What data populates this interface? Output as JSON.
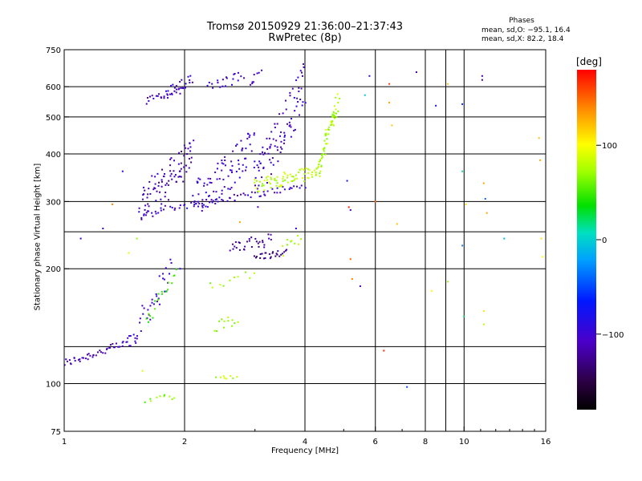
{
  "header": {
    "title": "Tromsø 20150929 21:36:00–21:37:43",
    "subtitle": "RwPretec (8p)",
    "phases_title": "Phases",
    "phases_o": "mean, sd,O: −95.1, 16.4",
    "phases_x": "mean, sd,X: 82.2, 18.4"
  },
  "colorbar": {
    "unit": "[deg]",
    "ticks": [
      {
        "value": 100,
        "label": "100"
      },
      {
        "value": 0,
        "label": "0"
      },
      {
        "value": -100,
        "label": "−100"
      }
    ],
    "range": [
      -180,
      180
    ]
  },
  "chart_data": {
    "type": "scatter",
    "title": "Tromsø 20150929 21:36:00–21:37:43",
    "subtitle": "RwPretec (8p)",
    "xlabel": "Frequency [MHz]",
    "ylabel": "Stationary phase Virtual Height [km]",
    "x_scale": "log",
    "y_scale": "log",
    "xlim": [
      1,
      16
    ],
    "ylim": [
      75,
      750
    ],
    "x_ticks": [
      {
        "value": 1,
        "label": "1"
      },
      {
        "value": 2,
        "label": "2"
      },
      {
        "value": 4,
        "label": "4"
      },
      {
        "value": 6,
        "label": "6"
      },
      {
        "value": 8,
        "label": "8"
      },
      {
        "value": 10,
        "label": "10"
      },
      {
        "value": 16,
        "label": "16"
      }
    ],
    "y_ticks": [
      {
        "value": 75,
        "label": "75"
      },
      {
        "value": 100,
        "label": "100"
      },
      {
        "value": 200,
        "label": "200"
      },
      {
        "value": 300,
        "label": "300"
      },
      {
        "value": 400,
        "label": "400"
      },
      {
        "value": 500,
        "label": "500"
      },
      {
        "value": 600,
        "label": "600"
      },
      {
        "value": 750,
        "label": "750"
      }
    ],
    "x_grid": [
      2,
      4,
      6,
      8,
      9,
      10
    ],
    "y_grid": [
      100,
      125,
      200,
      250,
      300,
      400,
      500,
      600
    ],
    "grid": true,
    "color_variable": "phase [deg]",
    "traces": [
      {
        "x0": 1.0,
        "x1": 1.45,
        "y0": 113,
        "y1": 128,
        "phase": -110,
        "n": 45,
        "jitter_y": 0.025
      },
      {
        "x0": 1.45,
        "x1": 1.85,
        "y0": 128,
        "y1": 200,
        "phase": -105,
        "n": 40,
        "jitter_y": 0.08
      },
      {
        "x0": 1.6,
        "x1": 1.9,
        "y0": 145,
        "y1": 195,
        "phase": 50,
        "n": 18,
        "jitter_y": 0.05
      },
      {
        "x0": 1.6,
        "x1": 1.9,
        "y0": 91,
        "y1": 93,
        "phase": 60,
        "n": 10,
        "jitter_y": 0.02
      },
      {
        "x0": 2.4,
        "x1": 2.7,
        "y0": 104,
        "y1": 104,
        "phase": 80,
        "n": 8,
        "jitter_y": 0.01
      },
      {
        "x0": 2.4,
        "x1": 2.7,
        "y0": 140,
        "y1": 150,
        "phase": 75,
        "n": 12,
        "jitter_y": 0.04
      },
      {
        "x0": 2.3,
        "x1": 3.0,
        "y0": 180,
        "y1": 195,
        "phase": 70,
        "n": 10,
        "jitter_y": 0.03
      },
      {
        "x0": 2.6,
        "x1": 3.3,
        "y0": 225,
        "y1": 240,
        "phase": -120,
        "n": 30,
        "jitter_y": 0.04
      },
      {
        "x0": 3.0,
        "x1": 3.6,
        "y0": 215,
        "y1": 220,
        "phase": -130,
        "n": 25,
        "jitter_y": 0.02
      },
      {
        "x0": 3.5,
        "x1": 3.9,
        "y0": 225,
        "y1": 240,
        "phase": 70,
        "n": 10,
        "jitter_y": 0.04
      },
      {
        "x0": 1.55,
        "x1": 4.0,
        "y0": 280,
        "y1": 330,
        "phase": -100,
        "n": 70,
        "jitter_y": 0.02
      },
      {
        "x0": 1.55,
        "x1": 2.1,
        "y0": 290,
        "y1": 400,
        "phase": -110,
        "n": 90,
        "jitter_y": 0.12
      },
      {
        "x0": 2.1,
        "x1": 3.0,
        "y0": 300,
        "y1": 420,
        "phase": -100,
        "n": 90,
        "jitter_y": 0.12
      },
      {
        "x0": 3.0,
        "x1": 4.0,
        "y0": 330,
        "y1": 620,
        "phase": -105,
        "n": 90,
        "jitter_y": 0.15
      },
      {
        "x0": 3.0,
        "x1": 4.3,
        "y0": 330,
        "y1": 360,
        "phase": 80,
        "n": 70,
        "jitter_y": 0.04
      },
      {
        "x0": 4.3,
        "x1": 4.85,
        "y0": 360,
        "y1": 560,
        "phase": 75,
        "n": 60,
        "jitter_y": 0.06
      },
      {
        "x0": 1.6,
        "x1": 2.0,
        "y0": 550,
        "y1": 590,
        "phase": -110,
        "n": 25,
        "jitter_y": 0.02
      },
      {
        "x0": 1.8,
        "x1": 2.1,
        "y0": 580,
        "y1": 630,
        "phase": -100,
        "n": 20,
        "jitter_y": 0.03
      },
      {
        "x0": 2.3,
        "x1": 2.8,
        "y0": 600,
        "y1": 640,
        "phase": -105,
        "n": 20,
        "jitter_y": 0.03
      },
      {
        "x0": 2.9,
        "x1": 3.1,
        "y0": 610,
        "y1": 655,
        "phase": -100,
        "n": 8,
        "jitter_y": 0.02
      }
    ],
    "points": [
      {
        "x": 1.1,
        "y": 240,
        "phase": -100
      },
      {
        "x": 1.25,
        "y": 255,
        "phase": -90
      },
      {
        "x": 1.4,
        "y": 360,
        "phase": -95
      },
      {
        "x": 1.45,
        "y": 220,
        "phase": 90
      },
      {
        "x": 1.32,
        "y": 295,
        "phase": 140
      },
      {
        "x": 1.52,
        "y": 240,
        "phase": 70
      },
      {
        "x": 1.57,
        "y": 108,
        "phase": 90
      },
      {
        "x": 1.95,
        "y": 200,
        "phase": -100
      },
      {
        "x": 2.75,
        "y": 265,
        "phase": 130
      },
      {
        "x": 3.8,
        "y": 255,
        "phase": -90
      },
      {
        "x": 5.1,
        "y": 340,
        "phase": -80
      },
      {
        "x": 5.15,
        "y": 290,
        "phase": 170
      },
      {
        "x": 5.2,
        "y": 285,
        "phase": -100
      },
      {
        "x": 5.2,
        "y": 212,
        "phase": 150
      },
      {
        "x": 5.25,
        "y": 188,
        "phase": 140
      },
      {
        "x": 5.5,
        "y": 180,
        "phase": -110
      },
      {
        "x": 5.65,
        "y": 570,
        "phase": -5
      },
      {
        "x": 5.8,
        "y": 640,
        "phase": -90
      },
      {
        "x": 6.0,
        "y": 300,
        "phase": 150
      },
      {
        "x": 6.3,
        "y": 122,
        "phase": 170
      },
      {
        "x": 6.5,
        "y": 610,
        "phase": 160
      },
      {
        "x": 6.5,
        "y": 545,
        "phase": 130
      },
      {
        "x": 6.6,
        "y": 475,
        "phase": 120
      },
      {
        "x": 6.8,
        "y": 262,
        "phase": 120
      },
      {
        "x": 7.2,
        "y": 98,
        "phase": -50
      },
      {
        "x": 7.6,
        "y": 655,
        "phase": -120
      },
      {
        "x": 8.3,
        "y": 175,
        "phase": 100
      },
      {
        "x": 8.5,
        "y": 535,
        "phase": -80
      },
      {
        "x": 9.1,
        "y": 610,
        "phase": 120
      },
      {
        "x": 9.1,
        "y": 185,
        "phase": 70
      },
      {
        "x": 9.9,
        "y": 540,
        "phase": -60
      },
      {
        "x": 9.9,
        "y": 360,
        "phase": 10
      },
      {
        "x": 9.9,
        "y": 230,
        "phase": -30
      },
      {
        "x": 10.0,
        "y": 150,
        "phase": 20
      },
      {
        "x": 10.1,
        "y": 295,
        "phase": 110
      },
      {
        "x": 11.1,
        "y": 640,
        "phase": -120
      },
      {
        "x": 11.1,
        "y": 625,
        "phase": -130
      },
      {
        "x": 11.2,
        "y": 335,
        "phase": 130
      },
      {
        "x": 11.3,
        "y": 305,
        "phase": -40
      },
      {
        "x": 11.4,
        "y": 280,
        "phase": 130
      },
      {
        "x": 11.2,
        "y": 155,
        "phase": 110
      },
      {
        "x": 11.2,
        "y": 143,
        "phase": 80
      },
      {
        "x": 12.6,
        "y": 240,
        "phase": -10
      },
      {
        "x": 15.4,
        "y": 440,
        "phase": 120
      },
      {
        "x": 15.5,
        "y": 385,
        "phase": 130
      },
      {
        "x": 15.6,
        "y": 240,
        "phase": 110
      },
      {
        "x": 15.7,
        "y": 215,
        "phase": 100
      }
    ]
  }
}
